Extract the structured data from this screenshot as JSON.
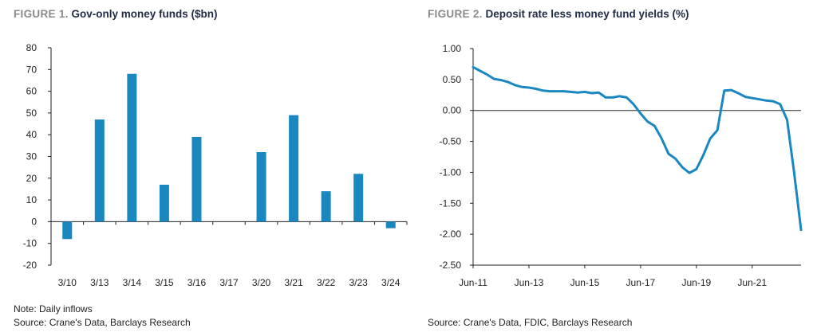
{
  "figure1": {
    "label": "FIGURE 1.",
    "title": "Gov-only money funds ($bn)",
    "note": "Note: Daily inflows",
    "source": "Source: Crane's Data, Barclays Research"
  },
  "figure2": {
    "label": "FIGURE 2.",
    "title": "Deposit rate less money fund yields (%)",
    "source": "Source: Crane's Data, FDIC, Barclays Research"
  },
  "colors": {
    "bar": "#1a87c0",
    "line": "#1a87c0",
    "axis": "#222222"
  },
  "chart_data": [
    {
      "type": "bar",
      "title": "Gov-only money funds ($bn)",
      "categories": [
        "3/10",
        "3/13",
        "3/14",
        "3/15",
        "3/16",
        "3/17",
        "3/20",
        "3/21",
        "3/22",
        "3/23",
        "3/24"
      ],
      "values": [
        -8,
        47,
        68,
        17,
        39,
        null,
        32,
        49,
        14,
        22,
        -3
      ],
      "ylim": [
        -20,
        80
      ],
      "yticks": [
        "80",
        "70",
        "60",
        "50",
        "40",
        "30",
        "20",
        "10",
        "0",
        "-10",
        "-20"
      ],
      "grid": false
    },
    {
      "type": "line",
      "title": "Deposit rate less money fund yields (%)",
      "xticks": [
        "Jun-11",
        "Jun-13",
        "Jun-15",
        "Jun-17",
        "Jun-19",
        "Jun-21"
      ],
      "yticks": [
        "1.00",
        "0.50",
        "0.00",
        "-0.50",
        "-1.00",
        "-1.50",
        "-2.00",
        "-2.50"
      ],
      "ylim": [
        -2.5,
        1.0
      ],
      "xlim": [
        "2011-06",
        "2023-03"
      ],
      "grid": false,
      "series": [
        {
          "x": [
            "2011-06",
            "2011-09",
            "2011-12",
            "2012-03",
            "2012-06",
            "2012-09",
            "2012-12",
            "2013-03",
            "2013-06",
            "2013-09",
            "2013-12",
            "2014-03",
            "2014-06",
            "2014-09",
            "2014-12",
            "2015-03",
            "2015-06",
            "2015-09",
            "2015-12",
            "2016-03",
            "2016-06",
            "2016-09",
            "2016-12",
            "2017-03",
            "2017-06",
            "2017-09",
            "2017-12",
            "2018-03",
            "2018-06",
            "2018-09",
            "2018-12",
            "2019-03",
            "2019-06",
            "2019-09",
            "2019-12",
            "2020-03",
            "2020-06",
            "2020-09",
            "2020-12",
            "2021-03",
            "2021-06",
            "2021-09",
            "2021-12",
            "2022-03",
            "2022-06",
            "2022-09",
            "2022-12",
            "2023-03"
          ],
          "y": [
            0.7,
            0.64,
            0.58,
            0.51,
            0.49,
            0.46,
            0.41,
            0.38,
            0.37,
            0.35,
            0.32,
            0.31,
            0.31,
            0.31,
            0.3,
            0.29,
            0.3,
            0.28,
            0.29,
            0.21,
            0.21,
            0.23,
            0.21,
            0.1,
            -0.05,
            -0.18,
            -0.25,
            -0.45,
            -0.7,
            -0.78,
            -0.92,
            -1.01,
            -0.95,
            -0.72,
            -0.45,
            -0.32,
            0.32,
            0.33,
            0.28,
            0.22,
            0.2,
            0.18,
            0.16,
            0.15,
            0.1,
            -0.15,
            -1.0,
            -1.93
          ]
        }
      ]
    }
  ]
}
